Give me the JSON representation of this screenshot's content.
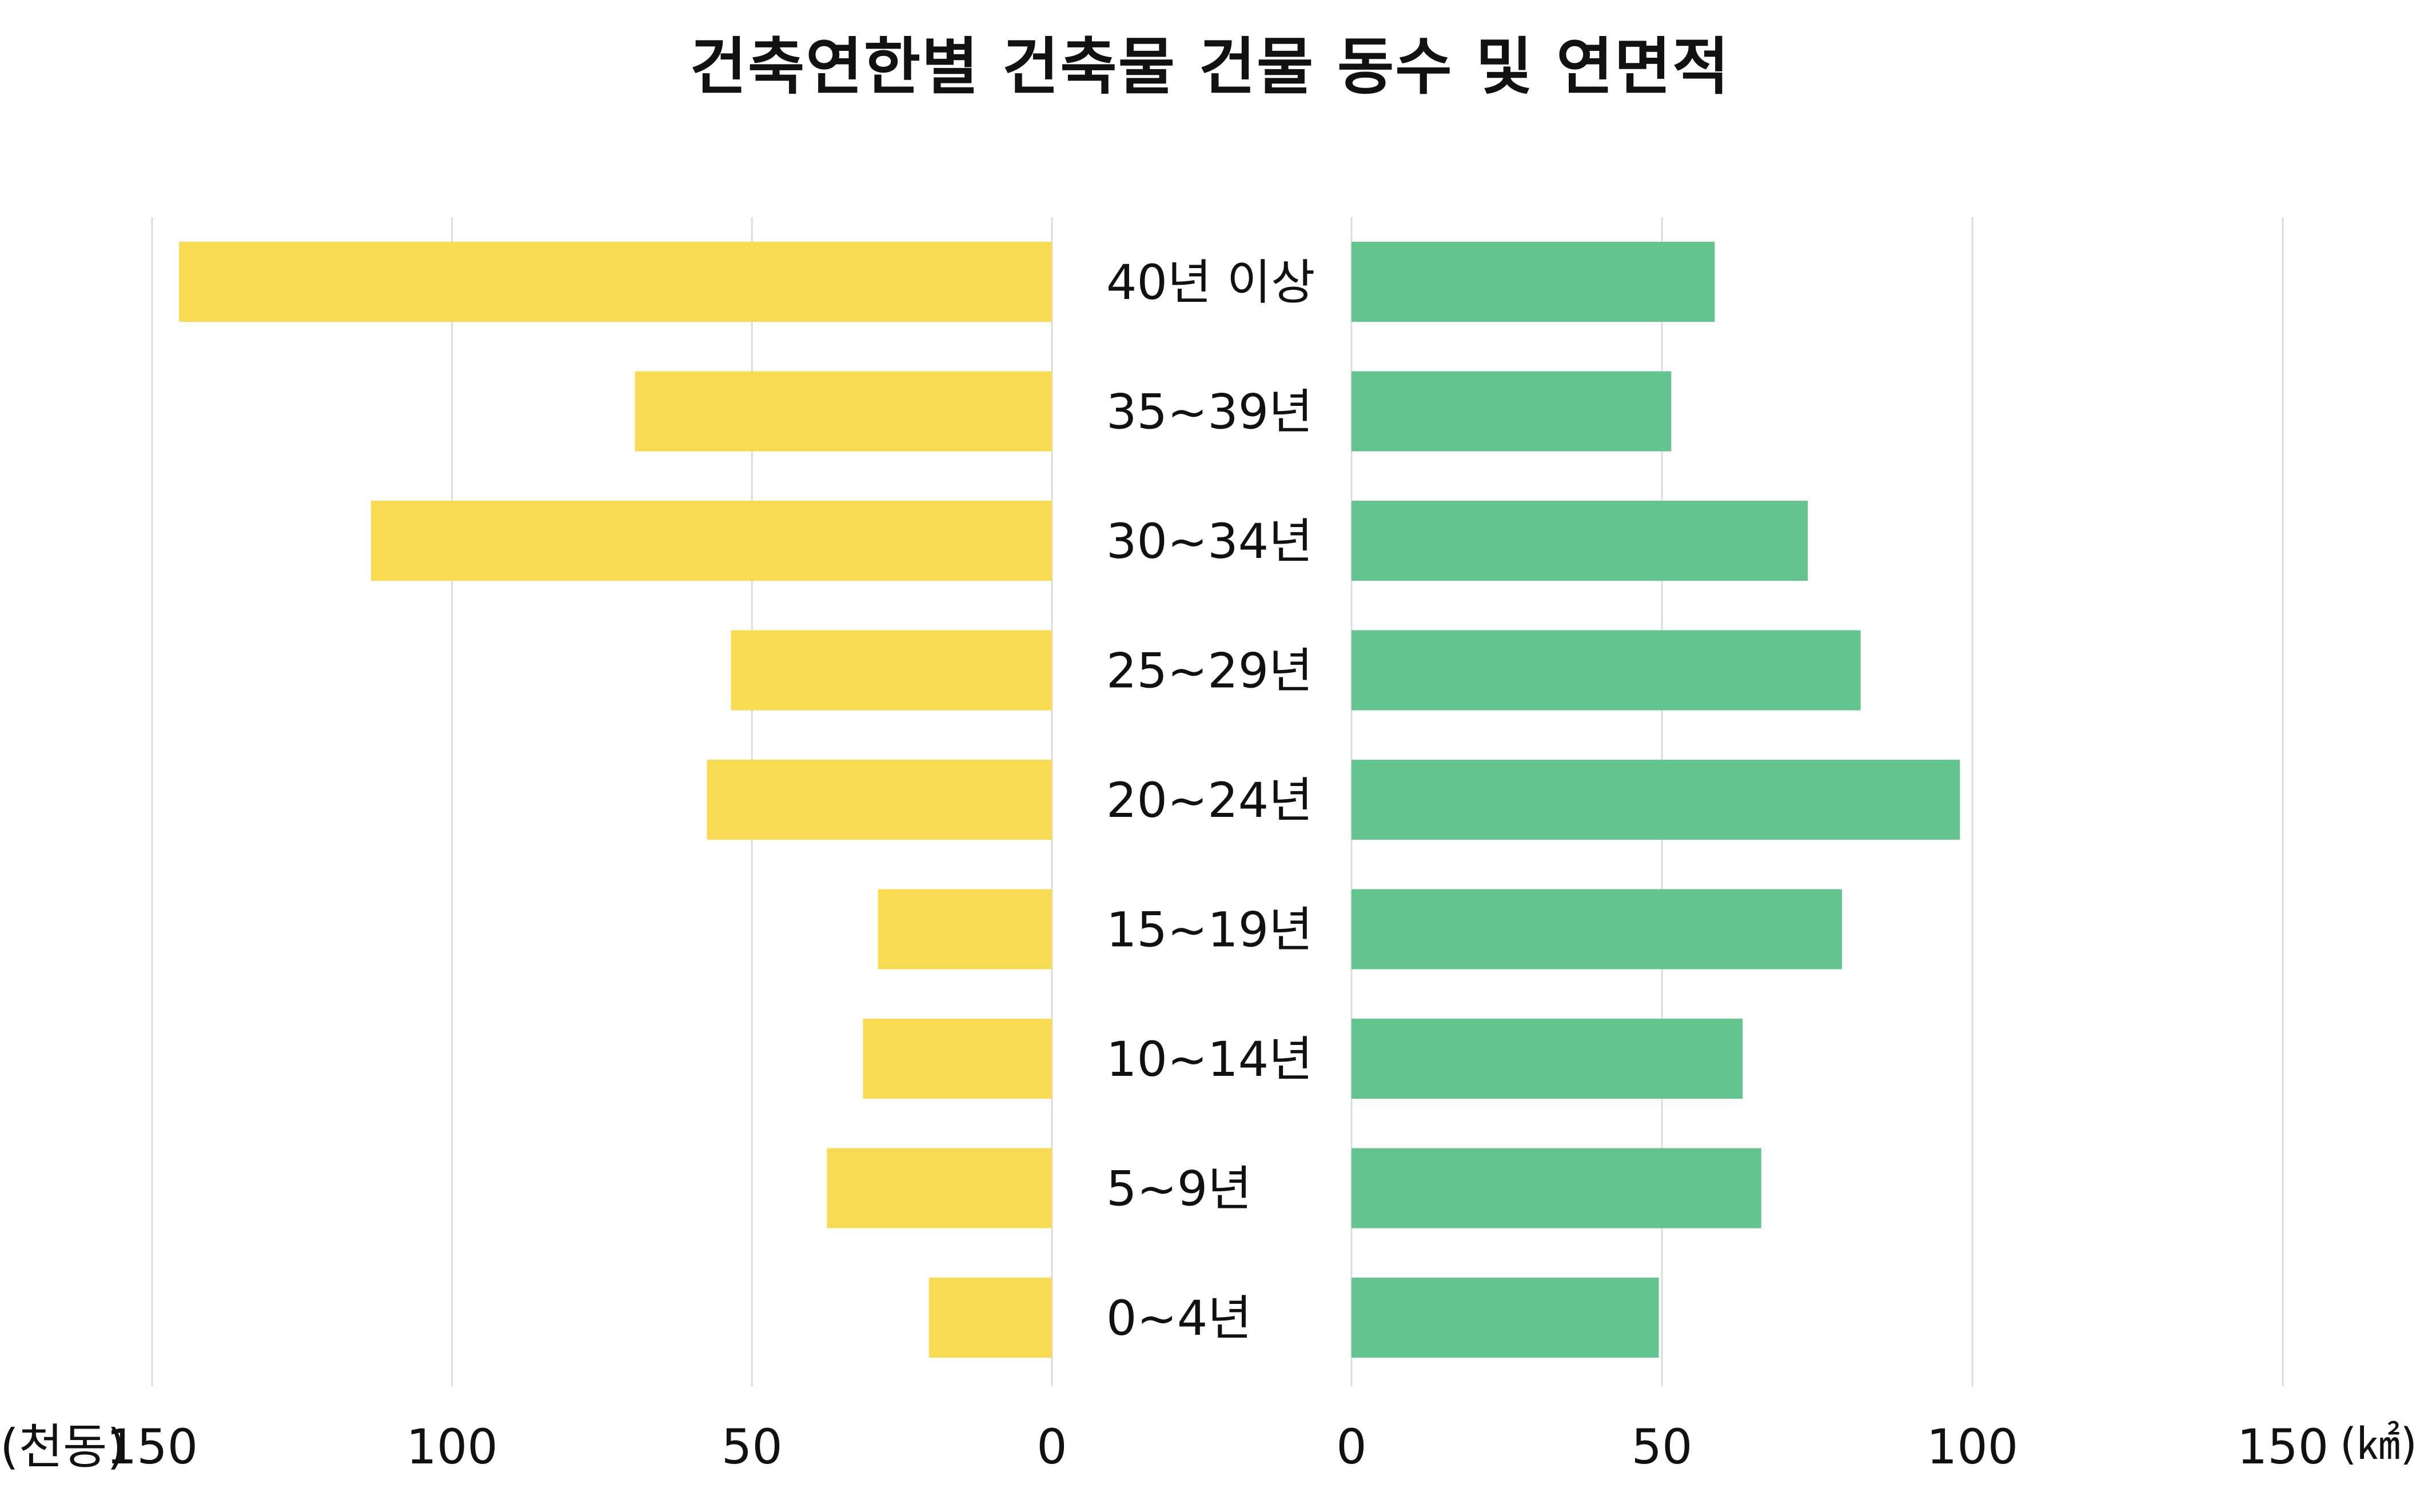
{
  "chart_data": {
    "type": "bar",
    "orientation": "horizontal",
    "layout": "butterfly",
    "title": "건축연한별 건축물 건물 동수 및 연면적",
    "categories": [
      "40년 이상",
      "35~39년",
      "30~34년",
      "25~29년",
      "20~24년",
      "15~19년",
      "10~14년",
      "5~9년",
      "0~4년"
    ],
    "left_axis": {
      "unit_label": "(천동)",
      "ticks": [
        150,
        100,
        50,
        0
      ],
      "xlim": [
        0,
        150
      ]
    },
    "right_axis": {
      "unit_label": "(㎢)",
      "ticks": [
        0,
        50,
        100,
        150
      ],
      "xlim": [
        0,
        150
      ]
    },
    "series": [
      {
        "side": "left",
        "color": "#F9DB51",
        "values": [
          145.5,
          69.5,
          113.5,
          53.5,
          57.5,
          29,
          31.5,
          37.5,
          20.5
        ]
      },
      {
        "side": "right",
        "color": "#63C48D",
        "values": [
          58.5,
          51.5,
          73.5,
          82,
          98,
          79,
          63,
          66,
          49.5
        ]
      }
    ],
    "grid": true
  }
}
